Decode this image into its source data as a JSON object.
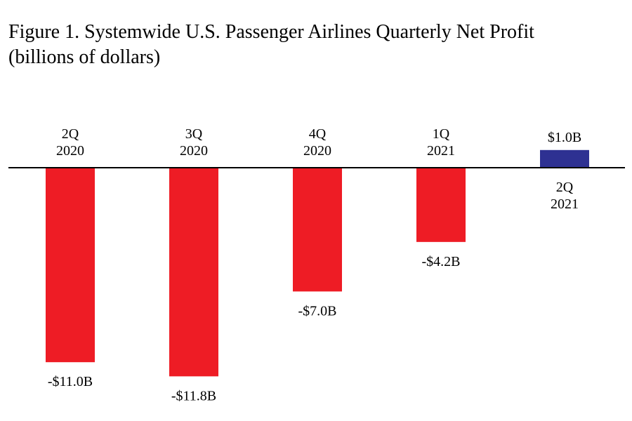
{
  "title_line1": "Figure 1. Systemwide U.S. Passenger Airlines Quarterly Net Profit",
  "title_line2": "(billions of dollars)",
  "chart_data": {
    "type": "bar",
    "title": "Figure 1. Systemwide U.S. Passenger Airlines Quarterly Net Profit",
    "subtitle": "(billions of dollars)",
    "unit": "billions of dollars",
    "categories": [
      "2Q 2020",
      "3Q 2020",
      "4Q 2020",
      "1Q 2021",
      "2Q 2021"
    ],
    "category_lines": [
      [
        "2Q",
        "2020"
      ],
      [
        "3Q",
        "2020"
      ],
      [
        "4Q",
        "2020"
      ],
      [
        "1Q",
        "2021"
      ],
      [
        "2Q",
        "2021"
      ]
    ],
    "values": [
      -11.0,
      -11.8,
      -7.0,
      -4.2,
      1.0
    ],
    "value_labels": [
      "-$11.0B",
      "-$11.8B",
      "-$7.0B",
      "-$4.2B",
      "$1.0B"
    ],
    "negative_color": "#ee1c25",
    "positive_color": "#2e3192",
    "axis_color": "#000000",
    "grid": false,
    "legend": "none",
    "ylim": [
      -11.8,
      1.0
    ]
  }
}
